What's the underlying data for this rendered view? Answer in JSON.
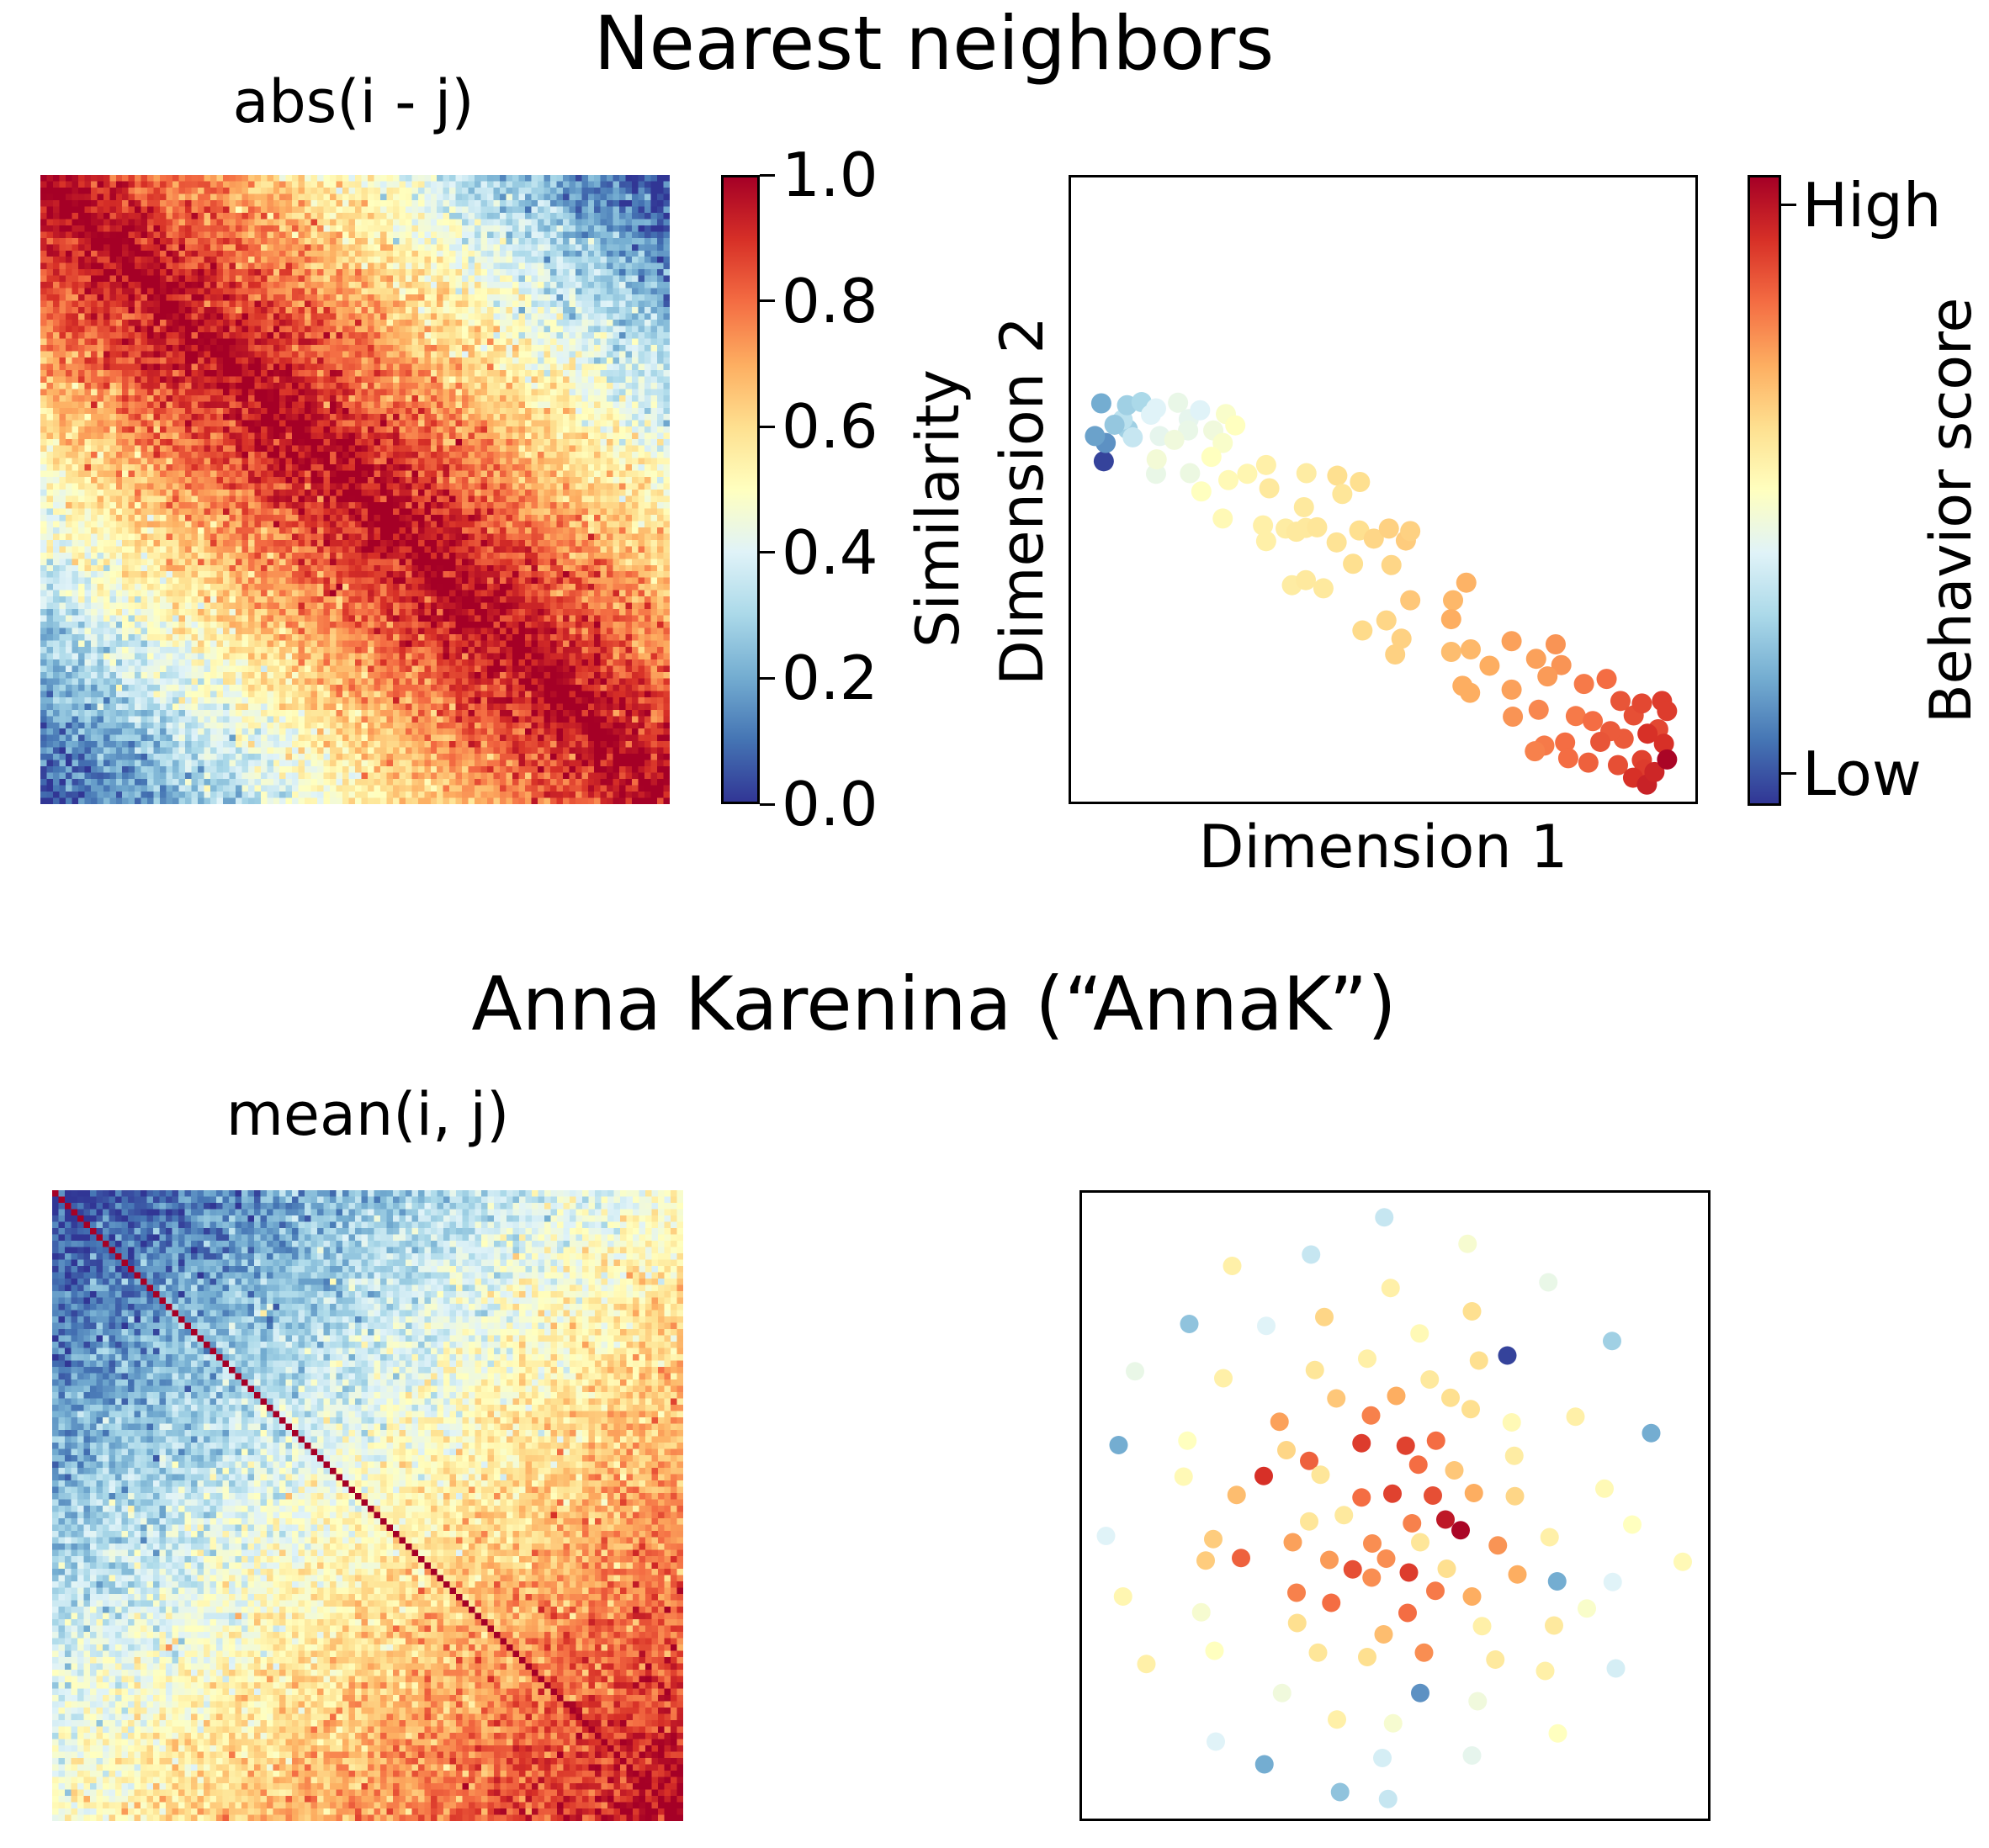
{
  "colormap": [
    "#313695",
    "#4575b4",
    "#74add1",
    "#abd9e9",
    "#e0f3f8",
    "#ffffbf",
    "#fee090",
    "#fdae61",
    "#f46d43",
    "#d73027",
    "#a50026"
  ],
  "chart_data": [
    {
      "type": "heatmap",
      "section_title": "Nearest neighbors",
      "title": "abs(i - j)",
      "matrix_size": 100,
      "value_formula": "1 - abs(i - j) / N",
      "noise": 0.07,
      "diagonal_value": 1.0,
      "colorbar": {
        "label": "Similarity",
        "range": [
          0.0,
          1.0
        ],
        "ticks": [
          "0.0",
          "0.2",
          "0.4",
          "0.6",
          "0.8",
          "1.0"
        ]
      }
    },
    {
      "type": "scatter",
      "title": "",
      "xlabel": "Dimension 1",
      "ylabel": "Dimension 2",
      "xlim": [
        0,
        100
      ],
      "ylim": [
        0,
        100
      ],
      "ticks": false,
      "colorbar": {
        "label": "Behavior score",
        "high_label": "High",
        "low_label": "Low"
      },
      "points": [
        [
          5.6,
          54.5,
          0.02
        ],
        [
          5.9,
          57.4,
          0.15
        ],
        [
          4.2,
          58.5,
          0.18
        ],
        [
          9.4,
          59.6,
          0.28
        ],
        [
          10.2,
          58.3,
          0.35
        ],
        [
          8.6,
          61.1,
          0.33
        ],
        [
          9.3,
          63.4,
          0.28
        ],
        [
          5.2,
          63.7,
          0.2
        ],
        [
          7.3,
          60.3,
          0.26
        ],
        [
          11.6,
          63.9,
          0.3
        ],
        [
          13.1,
          61.9,
          0.4
        ],
        [
          14.5,
          58.5,
          0.42
        ],
        [
          13.9,
          62.9,
          0.4
        ],
        [
          17.4,
          63.8,
          0.43
        ],
        [
          19.1,
          61.2,
          0.42
        ],
        [
          20.9,
          62.6,
          0.4
        ],
        [
          19.0,
          59.4,
          0.43
        ],
        [
          16.8,
          57.9,
          0.45
        ],
        [
          23.0,
          59.4,
          0.45
        ],
        [
          25.0,
          62.0,
          0.48
        ],
        [
          13.9,
          52.5,
          0.43
        ],
        [
          14.0,
          54.8,
          0.46
        ],
        [
          19.3,
          52.6,
          0.44
        ],
        [
          24.5,
          57.4,
          0.48
        ],
        [
          26.5,
          60.2,
          0.5
        ],
        [
          22.7,
          55.2,
          0.5
        ],
        [
          25.4,
          51.5,
          0.52
        ],
        [
          21.1,
          49.7,
          0.5
        ],
        [
          31.4,
          53.9,
          0.55
        ],
        [
          28.4,
          52.5,
          0.53
        ],
        [
          31.9,
          50.2,
          0.57
        ],
        [
          37.4,
          47.2,
          0.57
        ],
        [
          37.8,
          52.6,
          0.56
        ],
        [
          42.7,
          52.2,
          0.6
        ],
        [
          46.3,
          51.2,
          0.6
        ],
        [
          43.5,
          49.3,
          0.58
        ],
        [
          24.5,
          45.4,
          0.52
        ],
        [
          30.9,
          44.3,
          0.55
        ],
        [
          31.4,
          41.8,
          0.55
        ],
        [
          34.5,
          43.8,
          0.56
        ],
        [
          36.2,
          43.3,
          0.57
        ],
        [
          37.7,
          43.9,
          0.57
        ],
        [
          39.5,
          44.0,
          0.58
        ],
        [
          42.6,
          41.6,
          0.59
        ],
        [
          46.2,
          43.5,
          0.6
        ],
        [
          48.5,
          42.2,
          0.62
        ],
        [
          50.9,
          43.8,
          0.63
        ],
        [
          53.6,
          41.9,
          0.64
        ],
        [
          54.3,
          43.4,
          0.63
        ],
        [
          51.3,
          38.0,
          0.62
        ],
        [
          45.2,
          38.2,
          0.6
        ],
        [
          40.5,
          34.3,
          0.57
        ],
        [
          35.5,
          34.8,
          0.56
        ],
        [
          37.7,
          35.6,
          0.57
        ],
        [
          54.3,
          32.4,
          0.65
        ],
        [
          61.1,
          32.4,
          0.68
        ],
        [
          63.2,
          35.2,
          0.69
        ],
        [
          60.8,
          29.4,
          0.7
        ],
        [
          50.5,
          29.2,
          0.62
        ],
        [
          52.9,
          26.3,
          0.63
        ],
        [
          51.9,
          23.8,
          0.63
        ],
        [
          46.7,
          27.6,
          0.61
        ],
        [
          60.8,
          24.2,
          0.67
        ],
        [
          63.9,
          24.6,
          0.68
        ],
        [
          66.9,
          22.0,
          0.7
        ],
        [
          70.4,
          25.9,
          0.72
        ],
        [
          74.3,
          23.1,
          0.72
        ],
        [
          77.4,
          25.4,
          0.74
        ],
        [
          78.3,
          22.1,
          0.74
        ],
        [
          76.1,
          20.3,
          0.73
        ],
        [
          74.7,
          15.0,
          0.76
        ],
        [
          70.4,
          18.2,
          0.72
        ],
        [
          63.8,
          17.7,
          0.7
        ],
        [
          62.6,
          18.8,
          0.7
        ],
        [
          70.6,
          13.9,
          0.74
        ],
        [
          80.6,
          14.0,
          0.78
        ],
        [
          81.9,
          19.1,
          0.78
        ],
        [
          85.5,
          19.9,
          0.8
        ],
        [
          87.7,
          16.4,
          0.84
        ],
        [
          89.8,
          14.1,
          0.85
        ],
        [
          91.1,
          16.0,
          0.86
        ],
        [
          94.3,
          16.4,
          0.88
        ],
        [
          95.1,
          14.8,
          0.88
        ],
        [
          93.7,
          11.9,
          0.86
        ],
        [
          88.2,
          10.4,
          0.83
        ],
        [
          86.1,
          11.6,
          0.83
        ],
        [
          84.5,
          9.9,
          0.84
        ],
        [
          78.9,
          9.8,
          0.8
        ],
        [
          75.6,
          9.3,
          0.78
        ],
        [
          74.1,
          8.4,
          0.77
        ],
        [
          82.6,
          6.6,
          0.82
        ],
        [
          87.3,
          6.2,
          0.85
        ],
        [
          91.1,
          7.0,
          0.87
        ],
        [
          91.5,
          5.5,
          0.88
        ],
        [
          89.7,
          4.2,
          0.9
        ],
        [
          91.9,
          3.1,
          0.93
        ],
        [
          94.6,
          9.6,
          0.9
        ],
        [
          93.1,
          5.1,
          0.92
        ],
        [
          95.1,
          7.1,
          0.99
        ],
        [
          92.0,
          11.2,
          0.9
        ],
        [
          79.4,
          7.3,
          0.8
        ],
        [
          83.3,
          13.2,
          0.8
        ]
      ]
    },
    {
      "type": "heatmap",
      "section_title": "Anna Karenina (“AnnaK”)",
      "title": "mean(i, j)",
      "matrix_size": 100,
      "value_formula": "((i + j) / 2) / N",
      "noise": 0.07,
      "diagonal_value": 1.0
    },
    {
      "type": "scatter",
      "title": "",
      "xlim": [
        0,
        100
      ],
      "ylim": [
        0,
        100
      ],
      "ticks": false,
      "points": [
        [
          48.3,
          95.7,
          0.35
        ],
        [
          61.5,
          91.5,
          0.47
        ],
        [
          36.7,
          89.8,
          0.35
        ],
        [
          24.2,
          88.0,
          0.55
        ],
        [
          49.3,
          84.5,
          0.55
        ],
        [
          74.3,
          85.4,
          0.43
        ],
        [
          62.2,
          80.8,
          0.6
        ],
        [
          38.8,
          79.9,
          0.62
        ],
        [
          17.4,
          78.8,
          0.25
        ],
        [
          29.6,
          78.5,
          0.4
        ],
        [
          53.9,
          77.3,
          0.52
        ],
        [
          84.4,
          76.1,
          0.28
        ],
        [
          67.8,
          73.8,
          0.02
        ],
        [
          45.6,
          73.3,
          0.55
        ],
        [
          63.3,
          73.0,
          0.6
        ],
        [
          37.3,
          71.5,
          0.58
        ],
        [
          8.8,
          71.3,
          0.43
        ],
        [
          22.8,
          70.2,
          0.55
        ],
        [
          55.5,
          70.0,
          0.57
        ],
        [
          50.2,
          67.4,
          0.7
        ],
        [
          58.8,
          67.1,
          0.6
        ],
        [
          40.7,
          67.0,
          0.65
        ],
        [
          62.0,
          65.3,
          0.6
        ],
        [
          46.2,
          64.3,
          0.77
        ],
        [
          31.7,
          63.3,
          0.72
        ],
        [
          68.5,
          63.2,
          0.52
        ],
        [
          78.6,
          64.1,
          0.55
        ],
        [
          56.5,
          60.3,
          0.8
        ],
        [
          68.9,
          57.9,
          0.56
        ],
        [
          17.1,
          60.3,
          0.5
        ],
        [
          44.7,
          59.9,
          0.88
        ],
        [
          51.7,
          59.5,
          0.87
        ],
        [
          32.8,
          58.8,
          0.62
        ],
        [
          6.2,
          59.6,
          0.2
        ],
        [
          90.6,
          61.5,
          0.2
        ],
        [
          36.4,
          57.1,
          0.82
        ],
        [
          53.7,
          56.5,
          0.8
        ],
        [
          29.2,
          54.7,
          0.9
        ],
        [
          59.4,
          55.6,
          0.65
        ],
        [
          38.2,
          54.9,
          0.58
        ],
        [
          44.7,
          51.3,
          0.8
        ],
        [
          49.6,
          51.9,
          0.87
        ],
        [
          56.0,
          51.6,
          0.85
        ],
        [
          62.5,
          52.0,
          0.7
        ],
        [
          16.5,
          54.6,
          0.52
        ],
        [
          24.9,
          51.7,
          0.67
        ],
        [
          83.2,
          52.7,
          0.52
        ],
        [
          69.0,
          51.5,
          0.62
        ],
        [
          41.9,
          48.5,
          0.57
        ],
        [
          36.4,
          47.5,
          0.58
        ],
        [
          52.7,
          47.2,
          0.77
        ],
        [
          60.4,
          46.1,
          0.99
        ],
        [
          58.0,
          47.8,
          0.95
        ],
        [
          87.6,
          47.0,
          0.5
        ],
        [
          33.8,
          44.2,
          0.72
        ],
        [
          46.4,
          44.0,
          0.75
        ],
        [
          54.0,
          44.2,
          0.58
        ],
        [
          4.2,
          45.2,
          0.4
        ],
        [
          74.5,
          45.0,
          0.55
        ],
        [
          21.2,
          44.7,
          0.64
        ],
        [
          66.3,
          43.7,
          0.74
        ],
        [
          25.6,
          41.7,
          0.82
        ],
        [
          48.6,
          41.6,
          0.75
        ],
        [
          39.6,
          41.4,
          0.73
        ],
        [
          20.0,
          41.3,
          0.64
        ],
        [
          58.2,
          40.0,
          0.6
        ],
        [
          52.2,
          39.4,
          0.88
        ],
        [
          43.3,
          39.9,
          0.85
        ],
        [
          69.4,
          39.1,
          0.7
        ],
        [
          84.5,
          37.9,
          0.4
        ],
        [
          46.3,
          38.6,
          0.75
        ],
        [
          95.6,
          41.1,
          0.52
        ],
        [
          34.4,
          36.2,
          0.77
        ],
        [
          56.4,
          36.5,
          0.78
        ],
        [
          75.7,
          38.0,
          0.2
        ],
        [
          62.2,
          35.6,
          0.7
        ],
        [
          52.0,
          33.0,
          0.8
        ],
        [
          6.9,
          35.6,
          0.53
        ],
        [
          39.9,
          34.6,
          0.8
        ],
        [
          80.4,
          33.7,
          0.48
        ],
        [
          19.3,
          33.1,
          0.47
        ],
        [
          34.5,
          31.4,
          0.6
        ],
        [
          63.8,
          30.9,
          0.55
        ],
        [
          48.2,
          29.6,
          0.67
        ],
        [
          75.2,
          31.0,
          0.57
        ],
        [
          10.6,
          24.9,
          0.55
        ],
        [
          21.4,
          27.0,
          0.5
        ],
        [
          37.8,
          26.7,
          0.58
        ],
        [
          45.6,
          26.0,
          0.6
        ],
        [
          54.6,
          26.7,
          0.75
        ],
        [
          85.0,
          24.2,
          0.38
        ],
        [
          65.9,
          25.6,
          0.57
        ],
        [
          73.8,
          23.8,
          0.55
        ],
        [
          32.1,
          20.3,
          0.45
        ],
        [
          54.0,
          20.3,
          0.15
        ],
        [
          63.1,
          19.0,
          0.45
        ],
        [
          40.8,
          16.1,
          0.55
        ],
        [
          49.7,
          15.5,
          0.47
        ],
        [
          21.6,
          12.6,
          0.4
        ],
        [
          75.8,
          13.9,
          0.5
        ],
        [
          29.3,
          9.0,
          0.2
        ],
        [
          48.0,
          10.0,
          0.38
        ],
        [
          62.2,
          10.4,
          0.42
        ],
        [
          41.3,
          4.6,
          0.25
        ],
        [
          48.9,
          3.5,
          0.35
        ]
      ]
    }
  ]
}
